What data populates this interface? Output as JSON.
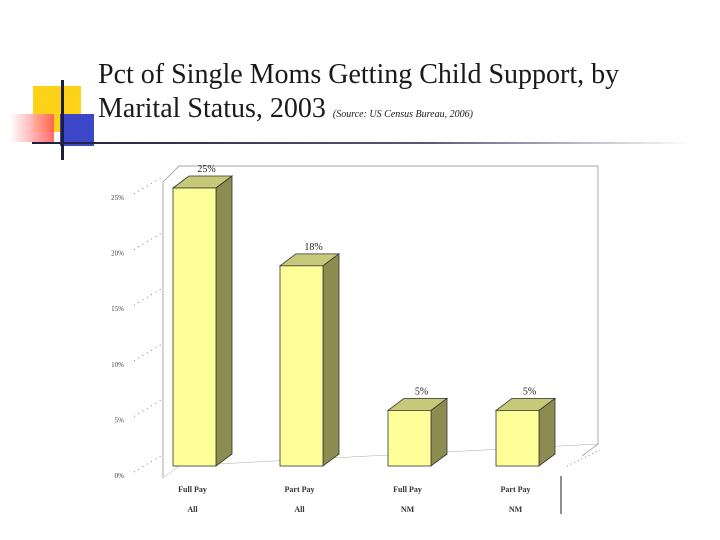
{
  "slide": {
    "title_main": "Pct of Single Moms Getting Child Support, by Marital Status, 2003",
    "title_source": "(Source: US Census Bureau, 2006)"
  },
  "colors": {
    "bar_front": "#ffff99",
    "bar_top": "#c8c87a",
    "bar_side": "#8c8c50",
    "deco_yellow": "#ffd21a",
    "deco_red": "#ff5a5a",
    "deco_blue": "#3c46c8",
    "deco_line": "#1e1e3c"
  },
  "chart_data": {
    "type": "bar",
    "categories": [
      "Full Pay|All",
      "Part Pay|All",
      "Full Pay|NM",
      "Part Pay|NM"
    ],
    "category_lines": [
      [
        "Full Pay",
        "All"
      ],
      [
        "Part Pay",
        "All"
      ],
      [
        "Full Pay",
        "NM"
      ],
      [
        "Part Pay",
        "NM"
      ]
    ],
    "values": [
      25,
      18,
      5,
      5
    ],
    "data_labels": [
      "25%",
      "18%",
      "5%",
      "5%"
    ],
    "ylim": [
      0,
      25
    ],
    "yticks": [
      "0%",
      "5%",
      "10%",
      "15%",
      "20%",
      "25%"
    ],
    "grid": false,
    "style": "3d"
  }
}
